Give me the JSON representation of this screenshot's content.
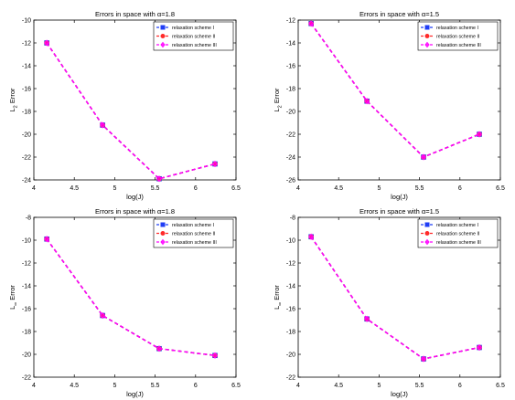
{
  "legend_labels": [
    "relaxation scheme I",
    "relaxation scheme II",
    "relaxation scheme III"
  ],
  "colors": {
    "scheme_I": "#1f3df5",
    "scheme_II": "#ff2a2a",
    "scheme_III": "#ff00ff"
  },
  "marker_icons": [
    "square-marker-icon",
    "circle-marker-icon",
    "diamond-marker-icon"
  ],
  "chart_data": [
    {
      "type": "line",
      "title": "Errors  in space with α=1.8",
      "xlabel": "log(J)",
      "ylabel": "L2 Error",
      "ylabel_main": "L",
      "ylabel_sub": "2",
      "ylabel_rest": " Error",
      "xlim": [
        4,
        6.5
      ],
      "ylim": [
        -24,
        -10
      ],
      "xticks": [
        4,
        4.5,
        5,
        5.5,
        6,
        6.5
      ],
      "yticks": [
        -24,
        -22,
        -20,
        -18,
        -16,
        -14,
        -12,
        -10
      ],
      "x": [
        4.16,
        4.85,
        5.55,
        6.24
      ],
      "series": [
        {
          "name": "relaxation scheme I",
          "values": [
            -12.0,
            -19.2,
            -23.9,
            -22.6
          ]
        },
        {
          "name": "relaxation scheme II",
          "values": [
            -12.0,
            -19.2,
            -23.9,
            -22.6
          ]
        },
        {
          "name": "relaxation scheme III",
          "values": [
            -12.0,
            -19.2,
            -23.9,
            -22.6
          ]
        }
      ],
      "legend_position": "top-right"
    },
    {
      "type": "line",
      "title": "Errors  in space with α=1.5",
      "xlabel": "log(J)",
      "ylabel": "L2 Error",
      "ylabel_main": "L",
      "ylabel_sub": "2",
      "ylabel_rest": " Error",
      "xlim": [
        4,
        6.5
      ],
      "ylim": [
        -26,
        -12
      ],
      "xticks": [
        4,
        4.5,
        5,
        5.5,
        6,
        6.5
      ],
      "yticks": [
        -26,
        -24,
        -22,
        -20,
        -18,
        -16,
        -14,
        -12
      ],
      "x": [
        4.16,
        4.85,
        5.55,
        6.24
      ],
      "series": [
        {
          "name": "relaxation scheme I",
          "values": [
            -12.3,
            -19.1,
            -24.0,
            -22.0
          ]
        },
        {
          "name": "relaxation scheme II",
          "values": [
            -12.3,
            -19.1,
            -24.0,
            -22.0
          ]
        },
        {
          "name": "relaxation scheme III",
          "values": [
            -12.3,
            -19.1,
            -24.0,
            -22.0
          ]
        }
      ],
      "legend_position": "top-right"
    },
    {
      "type": "line",
      "title": "Errors  in space with α=1.8",
      "xlabel": "log(J)",
      "ylabel": "L∞ Error",
      "ylabel_main": "L",
      "ylabel_sub": "∞",
      "ylabel_rest": " Error",
      "xlim": [
        4,
        6.5
      ],
      "ylim": [
        -22,
        -8
      ],
      "xticks": [
        4,
        4.5,
        5,
        5.5,
        6,
        6.5
      ],
      "yticks": [
        -22,
        -20,
        -18,
        -16,
        -14,
        -12,
        -10,
        -8
      ],
      "x": [
        4.16,
        4.85,
        5.55,
        6.24
      ],
      "series": [
        {
          "name": "relaxation scheme I",
          "values": [
            -9.9,
            -16.6,
            -19.5,
            -20.1
          ]
        },
        {
          "name": "relaxation scheme II",
          "values": [
            -9.9,
            -16.6,
            -19.5,
            -20.1
          ]
        },
        {
          "name": "relaxation scheme III",
          "values": [
            -9.9,
            -16.6,
            -19.5,
            -20.1
          ]
        }
      ],
      "legend_position": "top-right"
    },
    {
      "type": "line",
      "title": "Errors  in space with α=1.5",
      "xlabel": "log(J)",
      "ylabel": "L∞ Error",
      "ylabel_main": "L",
      "ylabel_sub": "∞",
      "ylabel_rest": " Error",
      "xlim": [
        4,
        6.5
      ],
      "ylim": [
        -22,
        -8
      ],
      "xticks": [
        4,
        4.5,
        5,
        5.5,
        6,
        6.5
      ],
      "yticks": [
        -22,
        -20,
        -18,
        -16,
        -14,
        -12,
        -10,
        -8
      ],
      "x": [
        4.16,
        4.85,
        5.55,
        6.24
      ],
      "series": [
        {
          "name": "relaxation scheme I",
          "values": [
            -9.7,
            -16.9,
            -20.4,
            -19.4
          ]
        },
        {
          "name": "relaxation scheme II",
          "values": [
            -9.7,
            -16.9,
            -20.4,
            -19.4
          ]
        },
        {
          "name": "relaxation scheme III",
          "values": [
            -9.7,
            -16.9,
            -20.4,
            -19.4
          ]
        }
      ],
      "legend_position": "top-right"
    }
  ]
}
